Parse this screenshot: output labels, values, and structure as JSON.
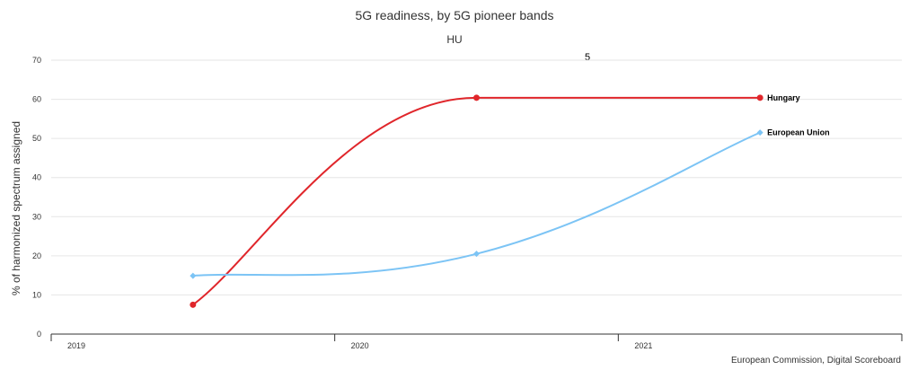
{
  "chart_data": {
    "type": "line",
    "title": "5G readiness, by 5G pioneer bands",
    "subtitle": "HU",
    "annotation": "5",
    "xlabel": "",
    "ylabel": "% of harmonized spectrum assigned",
    "x_categories": [
      "2019",
      "2020",
      "2021"
    ],
    "yticks": [
      0,
      10,
      20,
      30,
      40,
      50,
      60,
      70
    ],
    "ylim": [
      0,
      70
    ],
    "grid": true,
    "credits": "European Commission, Digital Scoreboard",
    "series": [
      {
        "name": "Hungary",
        "color": "#e0262b",
        "values": [
          7.5,
          60.4,
          60.4
        ]
      },
      {
        "name": "European Union",
        "color": "#7cc4f5",
        "values": [
          14.9,
          20.5,
          51.5
        ]
      }
    ]
  }
}
